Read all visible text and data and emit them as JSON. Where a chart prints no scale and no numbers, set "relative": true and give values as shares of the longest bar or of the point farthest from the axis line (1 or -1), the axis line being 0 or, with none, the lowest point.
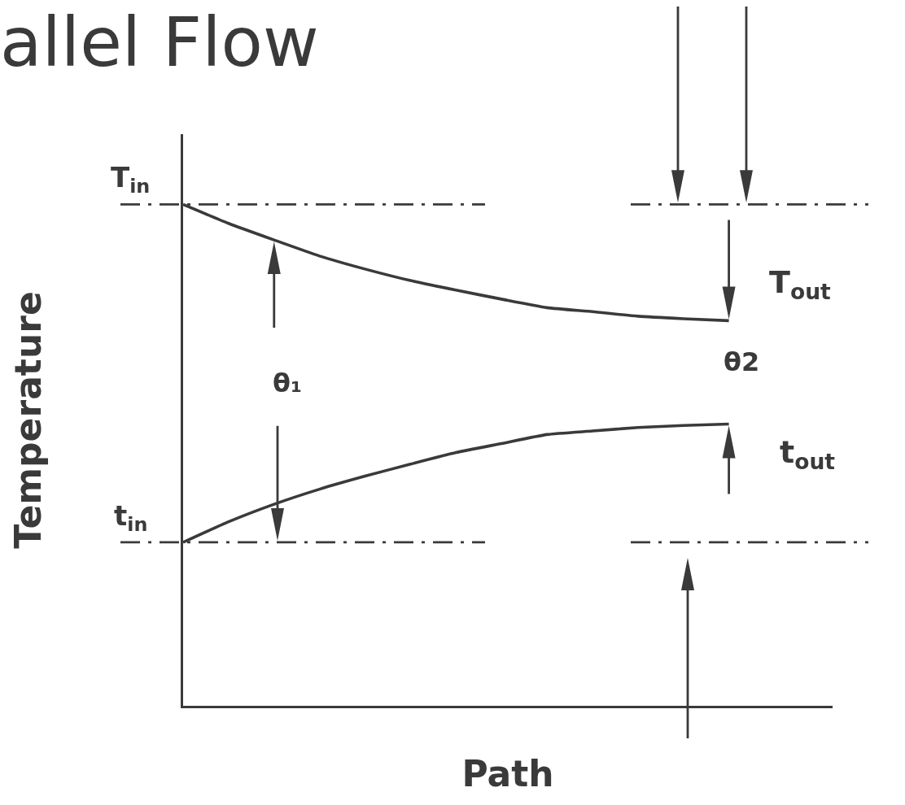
{
  "chart_data": {
    "type": "line",
    "title": "allel Flow",
    "xlabel": "Path",
    "ylabel": "Temperature",
    "relative": true,
    "categories": [
      null,
      null,
      null,
      null,
      null,
      null,
      null,
      null,
      null,
      null,
      null,
      null,
      null
    ],
    "series": [
      {
        "color": "#3a3a3a",
        "values": [
          1.0,
          0.962,
          0.929,
          0.897,
          0.871,
          0.848,
          0.829,
          0.811,
          0.794,
          0.786,
          0.777,
          0.772,
          0.768
        ]
      },
      {
        "color": "#3a3a3a",
        "values": [
          0.326,
          0.367,
          0.402,
          0.432,
          0.458,
          0.482,
          0.505,
          0.523,
          0.541,
          0.548,
          0.555,
          0.559,
          0.562
        ]
      }
    ],
    "ref_lines": [
      {
        "axis": "y",
        "value": 1.0,
        "label": "T$_{in}$",
        "color": "#3a3a3a",
        "line_style": "dashdot"
      },
      {
        "axis": "y",
        "value": 0.326,
        "label": "t$_{in}$",
        "color": "#3a3a3a",
        "line_style": "dashdot"
      }
    ],
    "annotations": [
      "T$_{out}$",
      "θ₁",
      "θ2",
      "t$_{out}$"
    ],
    "marker": "none",
    "line_style": "solid"
  }
}
